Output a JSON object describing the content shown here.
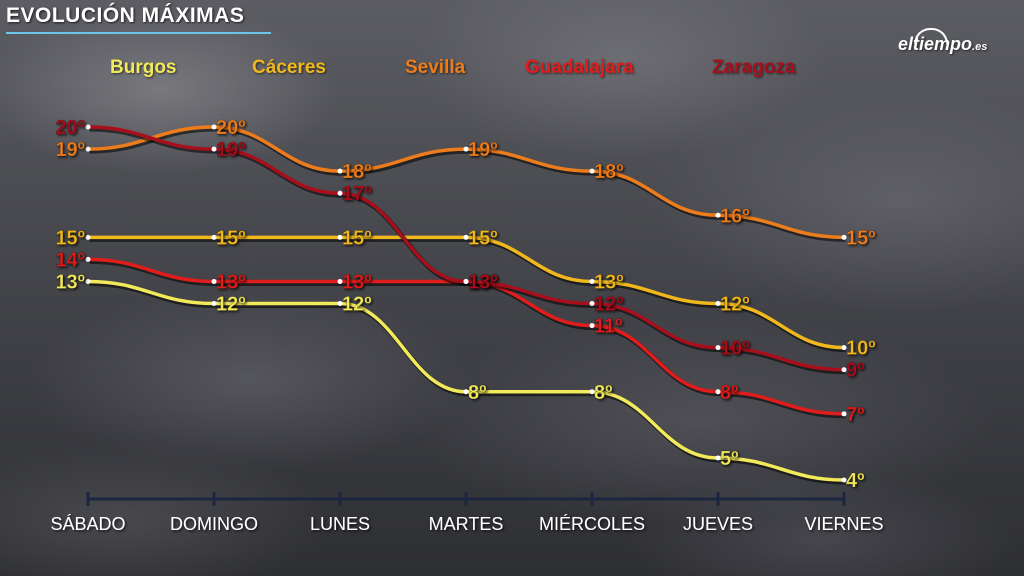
{
  "header": {
    "title": "EVOLUCIÓN MÁXIMAS"
  },
  "logo": {
    "main": "eltiempo",
    "suffix": ".es"
  },
  "chart_data": {
    "type": "line",
    "title": "EVOLUCIÓN MÁXIMAS",
    "categories": [
      "SÁBADO",
      "DOMINGO",
      "LUNES",
      "MARTES",
      "MIÉRCOLES",
      "JUEVES",
      "VIERNES"
    ],
    "unit": "º",
    "legend_position": "top",
    "grid": false,
    "series": [
      {
        "name": "Burgos",
        "color": "#f2ea5a",
        "values": [
          13,
          12,
          12,
          8,
          8,
          5,
          4
        ]
      },
      {
        "name": "Cáceres",
        "color": "#f0b81c",
        "values": [
          15,
          15,
          15,
          15,
          13,
          12,
          10
        ]
      },
      {
        "name": "Sevilla",
        "color": "#ec7c1c",
        "values": [
          19,
          20,
          18,
          19,
          18,
          16,
          15
        ]
      },
      {
        "name": "Guadalajara",
        "color": "#e01c1c",
        "values": [
          14,
          13,
          13,
          13,
          11,
          8,
          7
        ]
      },
      {
        "name": "Zaragoza",
        "color": "#a80f1c",
        "values": [
          20,
          19,
          17,
          13,
          12,
          10,
          9
        ]
      }
    ]
  }
}
